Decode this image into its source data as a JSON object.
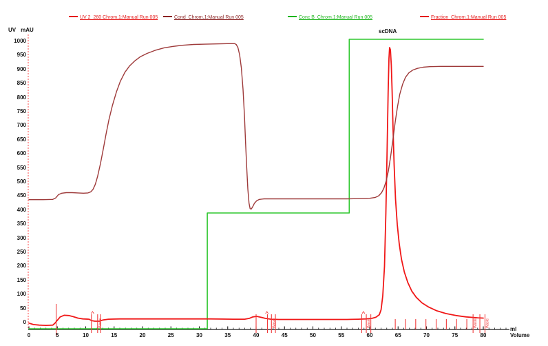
{
  "legend": {
    "items": [
      {
        "label": "UV 2_260 Chrom.1:Manual Run  005",
        "color": "#e51b1b"
      },
      {
        "label": "Cond_Chrom.1:Manual Run  005",
        "color": "#8b2323"
      },
      {
        "label": "Conc B_Chrom.1:Manual Run  005",
        "color": "#1db51d"
      },
      {
        "label": "Fraction_Chrom.1:Manual Run  005",
        "color": "#e51b1b"
      }
    ]
  },
  "axes": {
    "y_unit_left": "UV",
    "y_unit_right": "mAU",
    "x_unit_line1": "ml",
    "x_unit_line2": "Volume",
    "y_ticks": [
      0,
      50,
      100,
      150,
      200,
      250,
      300,
      350,
      400,
      450,
      500,
      550,
      600,
      650,
      700,
      750,
      800,
      850,
      900,
      950,
      1000
    ],
    "x_ticks": [
      0,
      5,
      10,
      15,
      20,
      25,
      30,
      35,
      40,
      45,
      50,
      55,
      60,
      65,
      70,
      75,
      80
    ]
  },
  "annotation": {
    "peak_label": "scDNA"
  },
  "chart_data": {
    "type": "line",
    "title": "",
    "xlabel": "Volume (ml)",
    "ylabel": "UV (mAU)",
    "xlim": [
      0,
      80
    ],
    "ylim": [
      0,
      1000
    ],
    "x_tick_step": 5,
    "y_tick_step": 50,
    "grid": false,
    "legend_position": "top",
    "annotations": [
      {
        "text": "scDNA",
        "x": 62.5,
        "y": 1010
      }
    ],
    "series": [
      {
        "name": "UV 2_260 Chrom.1:Manual Run  005",
        "unit": "mAU",
        "color": "#f01818",
        "width": 1.8,
        "z": 2,
        "points": [
          [
            0,
            -2
          ],
          [
            0.8,
            -7
          ],
          [
            1.8,
            -9
          ],
          [
            3,
            -10
          ],
          [
            4.2,
            -9
          ],
          [
            4.6,
            -2
          ],
          [
            5,
            8
          ],
          [
            5.5,
            20
          ],
          [
            6.2,
            26
          ],
          [
            7,
            25
          ],
          [
            7.8,
            21
          ],
          [
            8.6,
            16
          ],
          [
            9.5,
            13
          ],
          [
            10.6,
            12
          ],
          [
            11,
            7
          ],
          [
            11.6,
            5
          ],
          [
            12.4,
            5
          ],
          [
            13,
            9
          ],
          [
            14,
            12
          ],
          [
            16,
            13
          ],
          [
            20,
            13
          ],
          [
            26,
            13
          ],
          [
            32,
            13
          ],
          [
            36,
            12
          ],
          [
            38,
            12
          ],
          [
            38.8,
            15
          ],
          [
            39.4,
            20
          ],
          [
            40.1,
            22
          ],
          [
            40.8,
            19
          ],
          [
            41.6,
            15
          ],
          [
            42.6,
            12
          ],
          [
            44,
            11
          ],
          [
            48,
            11
          ],
          [
            52,
            11
          ],
          [
            56,
            11
          ],
          [
            58,
            12
          ],
          [
            59.3,
            13
          ],
          [
            60.4,
            15
          ],
          [
            61.1,
            19
          ],
          [
            61.7,
            28
          ],
          [
            62,
            45
          ],
          [
            62.3,
            95
          ],
          [
            62.6,
            200
          ],
          [
            62.85,
            390
          ],
          [
            63.05,
            600
          ],
          [
            63.25,
            820
          ],
          [
            63.4,
            940
          ],
          [
            63.5,
            978
          ],
          [
            63.65,
            970
          ],
          [
            63.8,
            915
          ],
          [
            63.95,
            820
          ],
          [
            64.1,
            700
          ],
          [
            64.3,
            560
          ],
          [
            64.55,
            440
          ],
          [
            64.85,
            350
          ],
          [
            65.2,
            280
          ],
          [
            65.6,
            225
          ],
          [
            66.1,
            180
          ],
          [
            66.7,
            143
          ],
          [
            67.4,
            112
          ],
          [
            68.2,
            90
          ],
          [
            69.2,
            70
          ],
          [
            70.4,
            55
          ],
          [
            71.8,
            42
          ],
          [
            73.4,
            32
          ],
          [
            75.2,
            25
          ],
          [
            77,
            20
          ],
          [
            79,
            17
          ],
          [
            80,
            16
          ]
        ]
      },
      {
        "name": "Cond_Chrom.1:Manual Run  005",
        "unit": "mAU",
        "color": "#9e3a3a",
        "width": 1.4,
        "z": 3,
        "points": [
          [
            0,
            437
          ],
          [
            2.5,
            437
          ],
          [
            4.2,
            438
          ],
          [
            4.7,
            443
          ],
          [
            5.2,
            455
          ],
          [
            5.8,
            460
          ],
          [
            6.6,
            462
          ],
          [
            7.6,
            462
          ],
          [
            8.6,
            461
          ],
          [
            9.6,
            460
          ],
          [
            10.4,
            461
          ],
          [
            10.9,
            465
          ],
          [
            11.3,
            474
          ],
          [
            11.7,
            492
          ],
          [
            12.1,
            520
          ],
          [
            12.6,
            565
          ],
          [
            13.1,
            618
          ],
          [
            13.6,
            672
          ],
          [
            14.1,
            722
          ],
          [
            14.7,
            772
          ],
          [
            15.4,
            820
          ],
          [
            16.1,
            858
          ],
          [
            16.9,
            890
          ],
          [
            17.7,
            912
          ],
          [
            18.6,
            930
          ],
          [
            19.6,
            945
          ],
          [
            20.8,
            957
          ],
          [
            22.2,
            968
          ],
          [
            23.8,
            977
          ],
          [
            25.4,
            982
          ],
          [
            27,
            986
          ],
          [
            29,
            989
          ],
          [
            31,
            990
          ],
          [
            33,
            991
          ],
          [
            35,
            992
          ],
          [
            36.2,
            992
          ],
          [
            36.5,
            989
          ],
          [
            36.8,
            978
          ],
          [
            37.1,
            952
          ],
          [
            37.4,
            905
          ],
          [
            37.7,
            830
          ],
          [
            37.95,
            735
          ],
          [
            38.15,
            640
          ],
          [
            38.35,
            550
          ],
          [
            38.55,
            475
          ],
          [
            38.75,
            425
          ],
          [
            38.95,
            405
          ],
          [
            39.15,
            404
          ],
          [
            39.4,
            412
          ],
          [
            39.7,
            424
          ],
          [
            40.1,
            433
          ],
          [
            40.6,
            438
          ],
          [
            41.4,
            440
          ],
          [
            43,
            440
          ],
          [
            47,
            440
          ],
          [
            52,
            440
          ],
          [
            56,
            440
          ],
          [
            58.5,
            441
          ],
          [
            60,
            442
          ],
          [
            61,
            445
          ],
          [
            61.6,
            451
          ],
          [
            62.1,
            462
          ],
          [
            62.5,
            478
          ],
          [
            62.9,
            503
          ],
          [
            63.3,
            540
          ],
          [
            63.7,
            592
          ],
          [
            64.1,
            652
          ],
          [
            64.5,
            714
          ],
          [
            64.9,
            768
          ],
          [
            65.3,
            812
          ],
          [
            65.8,
            848
          ],
          [
            66.3,
            872
          ],
          [
            66.9,
            888
          ],
          [
            67.6,
            898
          ],
          [
            68.4,
            904
          ],
          [
            69.4,
            908
          ],
          [
            70.6,
            910
          ],
          [
            72.5,
            911
          ],
          [
            76,
            911
          ],
          [
            80,
            911
          ]
        ]
      },
      {
        "name": "Conc B_Chrom.1:Manual Run  005",
        "unit": "%",
        "color": "#2fc72f",
        "width": 1.6,
        "z": 1,
        "points": [
          [
            0,
            0
          ],
          [
            31.4,
            0
          ],
          [
            31.4,
            40
          ],
          [
            56.4,
            40
          ],
          [
            56.4,
            100
          ],
          [
            80,
            100
          ]
        ]
      },
      {
        "name": "Fraction_Chrom.1:Manual Run  005",
        "unit": "marks",
        "color": "#f03a3a",
        "width": 1.1,
        "z": 4,
        "marks": [
          {
            "vol": 4.8,
            "kind": "tall",
            "label": ""
          },
          {
            "vol": 11.0,
            "kind": "med",
            "label": ""
          },
          {
            "vol": 12.1,
            "kind": "med",
            "label": "Waste"
          },
          {
            "vol": 12.6,
            "kind": "med",
            "label": ""
          },
          {
            "vol": 40.0,
            "kind": "med",
            "label": ""
          },
          {
            "vol": 42.0,
            "kind": "med",
            "label": ""
          },
          {
            "vol": 42.7,
            "kind": "med",
            "label": "Waste"
          },
          {
            "vol": 43.4,
            "kind": "med",
            "label": ""
          },
          {
            "vol": 58.6,
            "kind": "med",
            "label": ""
          },
          {
            "vol": 59.4,
            "kind": "med",
            "label": "Waste"
          },
          {
            "vol": 60.2,
            "kind": "med",
            "label": ""
          },
          {
            "vol": 64.5,
            "kind": "small",
            "label": ""
          },
          {
            "vol": 66.3,
            "kind": "small",
            "label": ""
          },
          {
            "vol": 68.1,
            "kind": "small",
            "label": ""
          },
          {
            "vol": 69.9,
            "kind": "small",
            "label": ""
          },
          {
            "vol": 71.7,
            "kind": "small",
            "label": ""
          },
          {
            "vol": 73.5,
            "kind": "small",
            "label": ""
          },
          {
            "vol": 75.3,
            "kind": "small",
            "label": ""
          },
          {
            "vol": 77.1,
            "kind": "small",
            "label": ""
          },
          {
            "vol": 78.2,
            "kind": "med",
            "label": "Waste"
          },
          {
            "vol": 79.4,
            "kind": "med",
            "label": ""
          },
          {
            "vol": 80.3,
            "kind": "med",
            "label": "Waste"
          }
        ],
        "carets": [
          11.2,
          41.9,
          58.9
        ]
      }
    ]
  },
  "colors": {
    "axis_line": "#1a1a1a",
    "y_axis_dashed": "#ff6666",
    "tick_text": "#111111"
  }
}
